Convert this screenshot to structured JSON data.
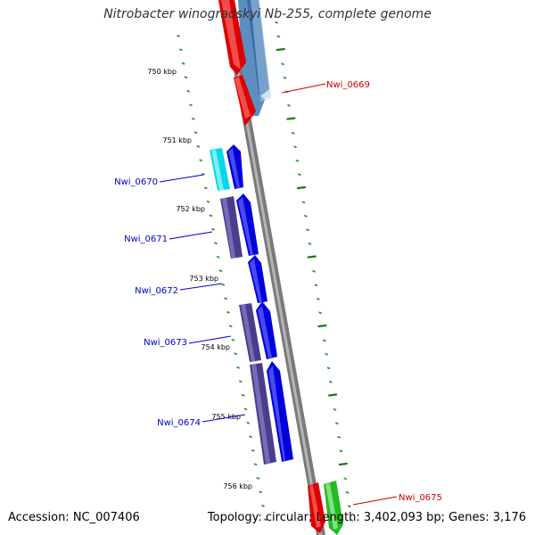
{
  "title": "Nitrobacter winogradskyi Nb-255, complete genome",
  "footer": {
    "accession": "Accession: NC_007406",
    "summary": "Topology: circular; Length: 3,402,093 bp; Genes: 3,176"
  },
  "colors": {
    "backbone": "#808080",
    "tick_major": "#1a7a1a",
    "tick_minor": "#3a9a3a",
    "label_forward": "#cc0000",
    "label_reverse": "#0000cc"
  },
  "ticks": {
    "major": [
      {
        "label": "750 kbp"
      },
      {
        "label": "751 kbp"
      },
      {
        "label": "752 kbp"
      },
      {
        "label": "753 kbp"
      },
      {
        "label": "754 kbp"
      },
      {
        "label": "755 kbp"
      },
      {
        "label": "756 kbp"
      }
    ]
  },
  "genes": [
    {
      "name": "Nwi_0669",
      "strand": "forward"
    },
    {
      "name": "Nwi_0670",
      "strand": "reverse"
    },
    {
      "name": "Nwi_0671",
      "strand": "reverse"
    },
    {
      "name": "Nwi_0672",
      "strand": "reverse"
    },
    {
      "name": "Nwi_0673",
      "strand": "reverse"
    },
    {
      "name": "Nwi_0674",
      "strand": "reverse"
    },
    {
      "name": "Nwi_0675",
      "strand": "forward"
    }
  ]
}
